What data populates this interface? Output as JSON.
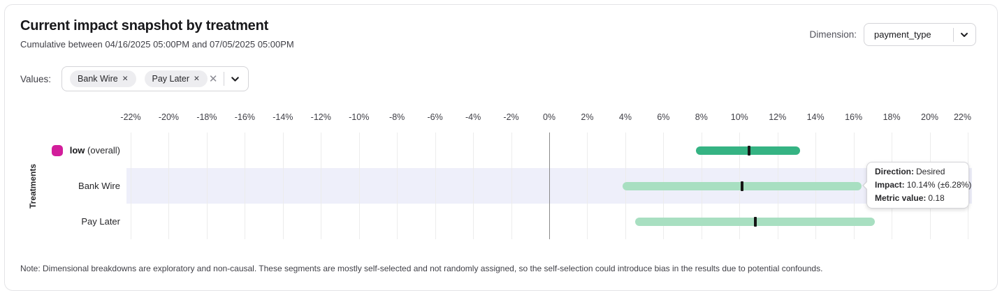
{
  "header": {
    "title": "Current impact snapshot by treatment",
    "subtitle": "Cumulative between 04/16/2025 05:00PM and 07/05/2025 05:00PM",
    "dimension_label": "Dimension:",
    "dimension_value": "payment_type"
  },
  "values_filter": {
    "label": "Values:",
    "chips": [
      {
        "label": "Bank Wire"
      },
      {
        "label": "Pay Later"
      }
    ]
  },
  "chart_data": {
    "type": "bar",
    "subtype": "horizontal-confidence-interval",
    "ylabel": "Treatments",
    "x_min": -22,
    "x_max": 22,
    "x_tick_values": [
      -22,
      -20,
      -18,
      -16,
      -14,
      -12,
      -10,
      -8,
      -6,
      -4,
      -2,
      0,
      2,
      4,
      6,
      8,
      10,
      12,
      14,
      16,
      18,
      20,
      22
    ],
    "x_tick_labels": [
      "-22%",
      "-20%",
      "-18%",
      "-16%",
      "-14%",
      "-12%",
      "-10%",
      "-8%",
      "-6%",
      "-4%",
      "-2%",
      "0%",
      "2%",
      "4%",
      "6%",
      "8%",
      "10%",
      "12%",
      "14%",
      "16%",
      "18%",
      "20%",
      "22%"
    ],
    "grid": true,
    "zero_line": 0,
    "rows": [
      {
        "legend": {
          "bold_label": "low",
          "suffix": "(overall)",
          "color": "#d21e9b"
        },
        "low": 7.7,
        "point": 10.5,
        "high": 13.2,
        "bar_color": "#35b383",
        "highlighted": false
      },
      {
        "label": "Bank Wire",
        "low": 3.86,
        "point": 10.14,
        "high": 16.42,
        "bar_color": "#a8dfc1",
        "highlighted": true
      },
      {
        "label": "Pay Later",
        "low": 4.5,
        "point": 10.85,
        "high": 17.1,
        "bar_color": "#a8dfc1",
        "highlighted": false
      }
    ],
    "colors": {
      "overall_bar": "#35b383",
      "segment_bar": "#a8dfc1",
      "point_tick": "#161616",
      "legend_swatch": "#d21e9b",
      "row_highlight": "#eeeffa",
      "gridline": "#ececec",
      "zero_line": "#8a8a8a"
    }
  },
  "tooltip": {
    "rows": [
      {
        "label": "Direction:",
        "value": "Desired"
      },
      {
        "label": "Impact:",
        "value": "10.14% (±6.28%)"
      },
      {
        "label": "Metric value:",
        "value": "0.18"
      }
    ]
  },
  "note": "Note: Dimensional breakdowns are exploratory and non-causal. These segments are mostly self-selected and not randomly assigned, so the self-selection could introduce bias in the results due to potential confounds."
}
